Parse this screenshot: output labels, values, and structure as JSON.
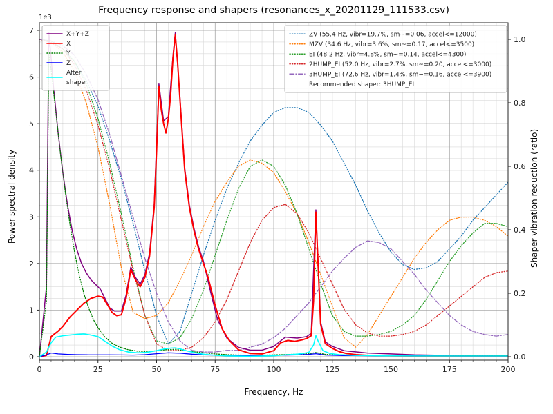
{
  "chart_data": {
    "type": "line",
    "title": "Frequency response and shapers (resonances_x_20201129_111533.csv)",
    "xlabel": "Frequency, Hz",
    "ylabel_left": "Power spectral density",
    "ylabel_right": "Shaper vibration reduction (ratio)",
    "y_left_offset": "1e3",
    "xlim": [
      0,
      200
    ],
    "ylim_left": [
      0,
      7000
    ],
    "ylim_right": [
      0,
      1.0
    ],
    "x_major_ticks": [
      0,
      25,
      50,
      75,
      100,
      125,
      150,
      175,
      200
    ],
    "x_minor_step": 5,
    "y_left_ticks": [
      0,
      1,
      2,
      3,
      4,
      5,
      6,
      7
    ],
    "y_left_tick_scale": 1000,
    "y_left_minor_step": 250,
    "y_right_ticks": [
      0.0,
      0.2,
      0.4,
      0.6,
      0.8,
      1.0
    ],
    "grid": "major+minor",
    "psd_series": [
      {
        "label": "X+Y+Z",
        "color": "#800080",
        "style": "solid",
        "width": 1.5,
        "x": [
          0,
          3,
          4,
          5,
          6,
          8,
          10,
          12,
          14,
          16,
          18,
          20,
          22,
          24,
          26,
          28,
          30,
          32,
          35,
          37,
          39,
          41,
          43,
          45,
          47,
          49,
          51,
          53,
          55,
          57,
          58,
          60,
          62,
          64,
          66,
          68,
          70,
          73,
          76,
          80,
          85,
          90,
          95,
          100,
          105,
          110,
          114,
          116,
          118,
          120,
          122,
          125,
          130,
          140,
          150,
          160,
          180,
          200
        ],
        "y": [
          0,
          1500,
          6950,
          6400,
          5800,
          4800,
          3950,
          3250,
          2700,
          2300,
          2000,
          1800,
          1650,
          1550,
          1450,
          1250,
          1050,
          980,
          980,
          1320,
          1920,
          1700,
          1560,
          1760,
          2220,
          3280,
          5850,
          5060,
          5150,
          6450,
          6950,
          5550,
          4050,
          3250,
          2750,
          2350,
          2050,
          1400,
          800,
          400,
          200,
          140,
          140,
          220,
          420,
          400,
          430,
          500,
          3150,
          750,
          320,
          220,
          130,
          80,
          60,
          40,
          25,
          25
        ]
      },
      {
        "label": "X",
        "color": "#ff0000",
        "style": "solid",
        "width": 2,
        "x": [
          0,
          3,
          5,
          6,
          8,
          10,
          13,
          16,
          19,
          22,
          25,
          27,
          29,
          31,
          33,
          35,
          37,
          39,
          41,
          43,
          45,
          47,
          49,
          50,
          51,
          52,
          53,
          54,
          55,
          56,
          57,
          58,
          59,
          60,
          62,
          64,
          66,
          68,
          70,
          72,
          75,
          78,
          81,
          85,
          90,
          95,
          100,
          103,
          106,
          109,
          112,
          114,
          116,
          117,
          118,
          119,
          120,
          122,
          125,
          128,
          131,
          135,
          140,
          150,
          160,
          180,
          200
        ],
        "y": [
          0,
          30,
          430,
          470,
          550,
          650,
          850,
          1000,
          1150,
          1250,
          1300,
          1280,
          1120,
          950,
          880,
          900,
          1250,
          1870,
          1650,
          1500,
          1700,
          2150,
          3200,
          4400,
          5800,
          5300,
          5000,
          4800,
          5100,
          5600,
          6400,
          6900,
          6300,
          5500,
          4000,
          3200,
          2700,
          2300,
          2000,
          1700,
          1100,
          600,
          350,
          150,
          70,
          60,
          130,
          300,
          350,
          330,
          360,
          390,
          450,
          1200,
          3100,
          1900,
          700,
          280,
          180,
          110,
          70,
          45,
          30,
          20,
          15,
          10,
          10
        ]
      },
      {
        "label": "Y",
        "color": "#008000",
        "style": "dotted",
        "width": 1.3,
        "x": [
          0,
          3,
          4,
          5,
          7,
          9,
          11,
          13,
          15,
          17,
          19,
          21,
          23,
          25,
          28,
          31,
          34,
          38,
          42,
          46,
          50,
          54,
          58,
          62,
          66,
          70,
          75,
          80,
          90,
          100,
          110,
          115,
          118,
          122,
          130,
          145,
          160,
          180,
          200
        ],
        "y": [
          0,
          1200,
          6500,
          6150,
          5250,
          4350,
          3550,
          2850,
          2250,
          1750,
          1350,
          1050,
          800,
          620,
          420,
          290,
          210,
          150,
          120,
          110,
          130,
          150,
          160,
          130,
          105,
          85,
          60,
          45,
          30,
          40,
          55,
          65,
          90,
          50,
          35,
          30,
          25,
          22,
          20
        ]
      },
      {
        "label": "Z",
        "color": "#0000ff",
        "style": "solid",
        "width": 1.3,
        "x": [
          0,
          3,
          5,
          8,
          12,
          16,
          20,
          25,
          30,
          35,
          40,
          45,
          50,
          55,
          60,
          65,
          70,
          80,
          90,
          100,
          110,
          115,
          118,
          122,
          130,
          145,
          160,
          180,
          200
        ],
        "y": [
          0,
          40,
          80,
          60,
          50,
          45,
          42,
          40,
          40,
          38,
          36,
          45,
          65,
          85,
          75,
          55,
          40,
          30,
          28,
          30,
          40,
          50,
          65,
          35,
          25,
          20,
          18,
          15,
          15
        ]
      },
      {
        "label": "After\nshaper",
        "color": "#00ffff",
        "style": "solid",
        "width": 1.6,
        "x": [
          0,
          3,
          5,
          7,
          10,
          13,
          16,
          19,
          22,
          25,
          28,
          31,
          34,
          38,
          42,
          46,
          50,
          53,
          56,
          58,
          60,
          63,
          66,
          70,
          75,
          80,
          90,
          100,
          105,
          110,
          113,
          115,
          117,
          118,
          119,
          121,
          124,
          128,
          135,
          145,
          160,
          180,
          200
        ],
        "y": [
          0,
          100,
          300,
          420,
          450,
          465,
          480,
          490,
          465,
          430,
          330,
          230,
          155,
          100,
          85,
          95,
          130,
          165,
          185,
          190,
          170,
          125,
          90,
          55,
          30,
          18,
          10,
          20,
          40,
          55,
          75,
          95,
          250,
          450,
          330,
          130,
          70,
          45,
          28,
          20,
          15,
          15,
          15
        ]
      }
    ],
    "shapers": {
      "x": [
        0,
        5,
        10,
        15,
        20,
        25,
        30,
        35,
        40,
        45,
        50,
        55,
        60,
        65,
        70,
        75,
        80,
        85,
        90,
        95,
        100,
        105,
        110,
        115,
        120,
        125,
        130,
        135,
        140,
        145,
        150,
        155,
        160,
        165,
        170,
        175,
        180,
        185,
        190,
        195,
        200
      ],
      "series": [
        {
          "label": "ZV (55.4 Hz, vibr=19.7%, sm~=0.06, accel<=12000)",
          "color": "#1f77b4",
          "style": "dotted",
          "values": [
            1.0,
            0.99,
            0.97,
            0.93,
            0.87,
            0.79,
            0.68,
            0.56,
            0.42,
            0.27,
            0.13,
            0.04,
            0.08,
            0.2,
            0.32,
            0.43,
            0.53,
            0.61,
            0.68,
            0.73,
            0.77,
            0.785,
            0.785,
            0.77,
            0.73,
            0.68,
            0.61,
            0.54,
            0.46,
            0.39,
            0.33,
            0.29,
            0.275,
            0.28,
            0.3,
            0.34,
            0.38,
            0.43,
            0.47,
            0.51,
            0.55
          ]
        },
        {
          "label": "MZV (34.6 Hz, vibr=3.6%, sm~=0.17, accel<=3500)",
          "color": "#ff7f0e",
          "style": "dotted",
          "values": [
            1.0,
            0.99,
            0.96,
            0.9,
            0.8,
            0.66,
            0.48,
            0.28,
            0.14,
            0.12,
            0.13,
            0.17,
            0.24,
            0.32,
            0.41,
            0.49,
            0.55,
            0.6,
            0.62,
            0.61,
            0.58,
            0.52,
            0.45,
            0.36,
            0.26,
            0.16,
            0.06,
            0.03,
            0.07,
            0.13,
            0.19,
            0.25,
            0.31,
            0.36,
            0.4,
            0.43,
            0.44,
            0.44,
            0.43,
            0.41,
            0.38
          ]
        },
        {
          "label": "EI (48.2 Hz, vibr=4.8%, sm~=0.14, accel<=4300)",
          "color": "#2ca02c",
          "style": "dotted",
          "values": [
            1.0,
            0.995,
            0.97,
            0.93,
            0.86,
            0.75,
            0.61,
            0.45,
            0.28,
            0.13,
            0.05,
            0.04,
            0.06,
            0.12,
            0.21,
            0.32,
            0.43,
            0.53,
            0.6,
            0.62,
            0.6,
            0.54,
            0.45,
            0.34,
            0.23,
            0.13,
            0.08,
            0.065,
            0.065,
            0.07,
            0.08,
            0.1,
            0.13,
            0.18,
            0.24,
            0.3,
            0.35,
            0.39,
            0.42,
            0.42,
            0.41
          ]
        },
        {
          "label": "2HUMP_EI (52.0 Hz, vibr=2.7%, sm~=0.20, accel<=3000)",
          "color": "#d62728",
          "style": "dotted",
          "values": [
            1.0,
            0.99,
            0.97,
            0.92,
            0.84,
            0.73,
            0.59,
            0.43,
            0.27,
            0.13,
            0.04,
            0.02,
            0.02,
            0.03,
            0.06,
            0.11,
            0.18,
            0.27,
            0.36,
            0.43,
            0.47,
            0.48,
            0.45,
            0.39,
            0.31,
            0.23,
            0.15,
            0.1,
            0.075,
            0.065,
            0.065,
            0.07,
            0.08,
            0.1,
            0.13,
            0.16,
            0.19,
            0.22,
            0.25,
            0.265,
            0.27
          ]
        },
        {
          "label": "3HUMP_EI (72.6 Hz, vibr=1.4%, sm~=0.16, accel<=3900)",
          "color": "#9467bd",
          "style": "dashdot",
          "values": [
            1.0,
            0.995,
            0.98,
            0.95,
            0.89,
            0.81,
            0.7,
            0.57,
            0.44,
            0.31,
            0.2,
            0.11,
            0.05,
            0.02,
            0.015,
            0.015,
            0.02,
            0.02,
            0.03,
            0.04,
            0.06,
            0.09,
            0.13,
            0.17,
            0.22,
            0.27,
            0.31,
            0.345,
            0.365,
            0.36,
            0.34,
            0.3,
            0.26,
            0.21,
            0.17,
            0.13,
            0.1,
            0.08,
            0.07,
            0.065,
            0.07
          ]
        }
      ],
      "note": "Recommended shaper: 3HUMP_EI"
    }
  }
}
